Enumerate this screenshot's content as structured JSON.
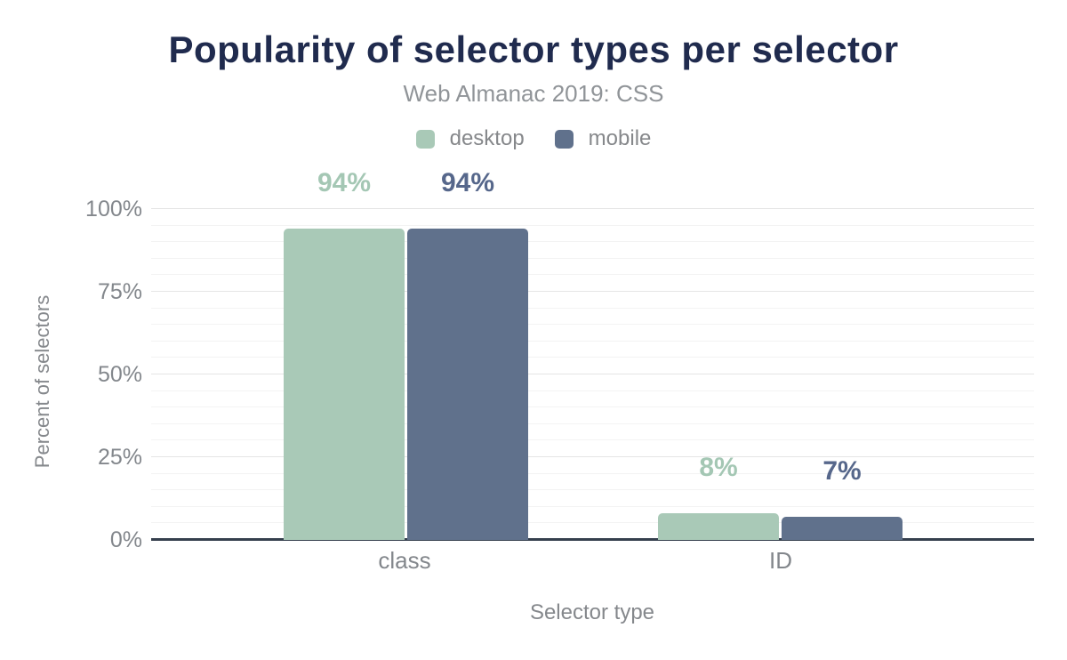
{
  "chart_data": {
    "type": "bar",
    "title": "Popularity of selector types per selector",
    "subtitle": "Web Almanac 2019: CSS",
    "categories": [
      "class",
      "ID"
    ],
    "series": [
      {
        "name": "desktop",
        "color": "#a9c9b7",
        "label_color": "#a4c7b4",
        "values": [
          94,
          8
        ],
        "labels": [
          "94%",
          "8%"
        ]
      },
      {
        "name": "mobile",
        "color": "#60718c",
        "label_color": "#56678b",
        "values": [
          94,
          7
        ],
        "labels": [
          "94%",
          "7%"
        ]
      }
    ],
    "xlabel": "Selector type",
    "ylabel": "Percent of selectors",
    "ylim": [
      0,
      100
    ],
    "yticks": [
      {
        "value": 0,
        "label": "0%"
      },
      {
        "value": 25,
        "label": "25%"
      },
      {
        "value": 50,
        "label": "50%"
      },
      {
        "value": 75,
        "label": "75%"
      },
      {
        "value": 100,
        "label": "100%"
      }
    ],
    "minor_grid_step": 5,
    "major_grid_step": 25,
    "grid": true,
    "legend_position": "top",
    "colors": {
      "background": "#ffffff",
      "title": "#202b4e",
      "subtitle": "#909498",
      "axis_text": "#83878c",
      "axis_line": "#353f4d",
      "major_grid": "#e5e5e5",
      "minor_grid": "#f3f3f3",
      "legend_text": "#86888b"
    }
  }
}
